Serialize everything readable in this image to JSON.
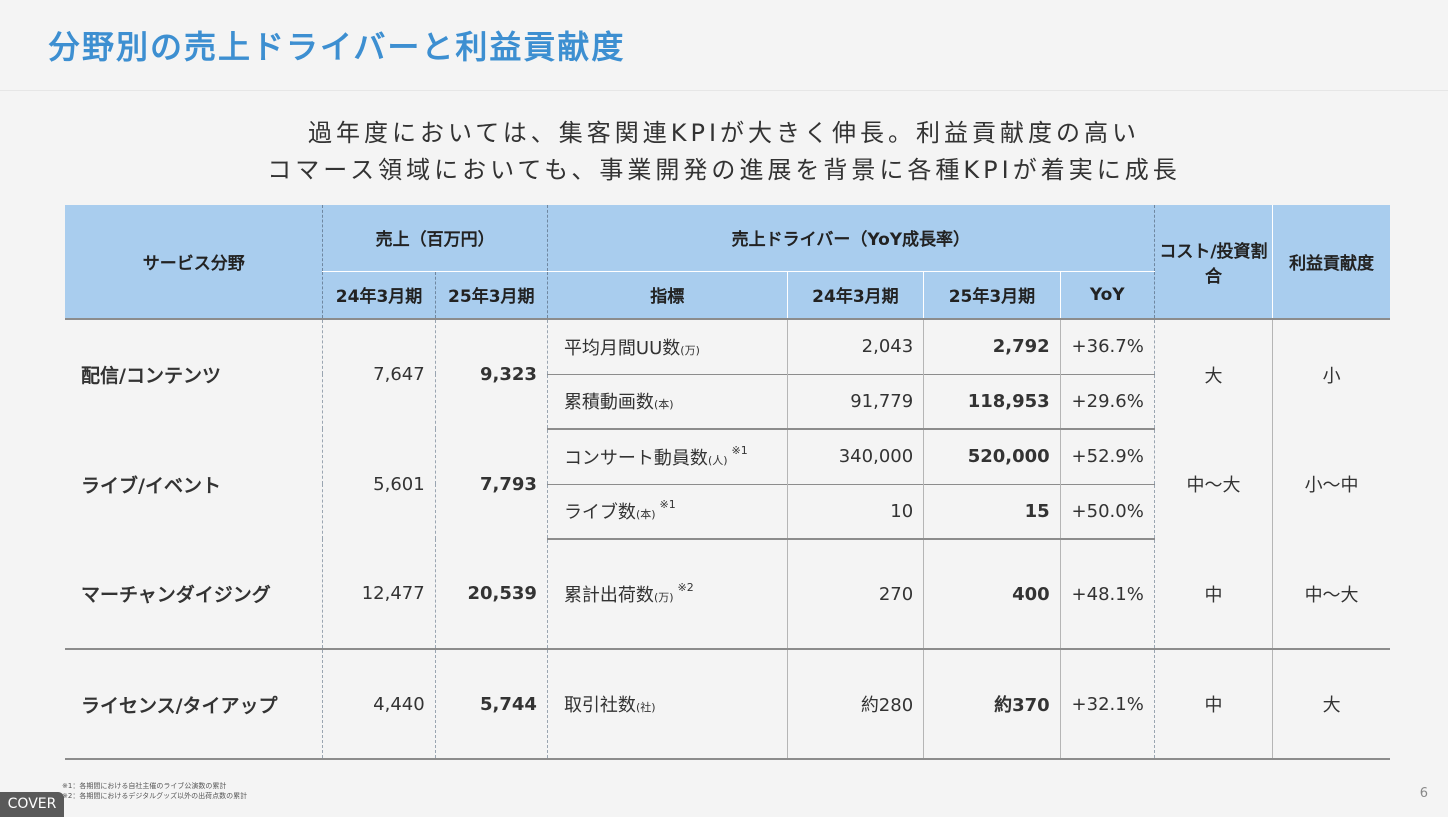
{
  "title": "分野別の売上ドライバーと利益貢献度",
  "subtitle_lines": [
    "過年度においては、集客関連KPIが大きく伸長。利益貢献度の高い",
    "コマース領域においても、事業開発の進展を背景に各種KPIが着実に成長"
  ],
  "table": {
    "header": {
      "service": "サービス分野",
      "sales": "売上（百万円）",
      "drivers": "売上ドライバー（YoY成長率）",
      "cost": "コスト/投資割合",
      "profit": "利益貢献度",
      "fy24": "24年3月期",
      "fy25": "25年3月期",
      "indicator": "指標",
      "yoy": "YoY"
    },
    "rows": [
      {
        "service": "配信/コンテンツ",
        "sales24": "7,647",
        "sales25": "9,323",
        "cost": "大",
        "profit": "小",
        "kpis": [
          {
            "name": "平均月間UU数",
            "unit": "(万)",
            "note": "",
            "v24": "2,043",
            "v25": "2,792",
            "yoy": "+36.7%"
          },
          {
            "name": "累積動画数",
            "unit": "(本)",
            "note": "",
            "v24": "91,779",
            "v25": "118,953",
            "yoy": "+29.6%"
          }
        ]
      },
      {
        "service": "ライブ/イベント",
        "sales24": "5,601",
        "sales25": "7,793",
        "cost": "中～大",
        "profit": "小～中",
        "kpis": [
          {
            "name": "コンサート動員数",
            "unit": "(人)",
            "note": "※1",
            "v24": "340,000",
            "v25": "520,000",
            "yoy": "+52.9%"
          },
          {
            "name": "ライブ数",
            "unit": "(本)",
            "note": "※1",
            "v24": "10",
            "v25": "15",
            "yoy": "+50.0%"
          }
        ]
      },
      {
        "service": "マーチャンダイジング",
        "sales24": "12,477",
        "sales25": "20,539",
        "cost": "中",
        "profit": "中～大",
        "kpis": [
          {
            "name": "累計出荷数",
            "unit": "(万)",
            "note": "※2",
            "v24": "270",
            "v25": "400",
            "yoy": "+48.1%"
          }
        ]
      },
      {
        "service": "ライセンス/タイアップ",
        "sales24": "4,440",
        "sales25": "5,744",
        "cost": "中",
        "profit": "大",
        "kpis": [
          {
            "name": "取引社数",
            "unit": "(社)",
            "note": "",
            "v24": "約280",
            "v25": "約370",
            "yoy": "+32.1%"
          }
        ]
      }
    ]
  },
  "footnotes": [
    "※1：各期間における自社主催のライブ公演数の累計",
    "※2：各期間におけるデジタルグッズ以外の出荷点数の累計"
  ],
  "page_number": "6",
  "cover_label": "COVER",
  "colors": {
    "title": "#3d8fd1",
    "header_bg": "#a9cdee",
    "background": "#f4f4f4"
  }
}
